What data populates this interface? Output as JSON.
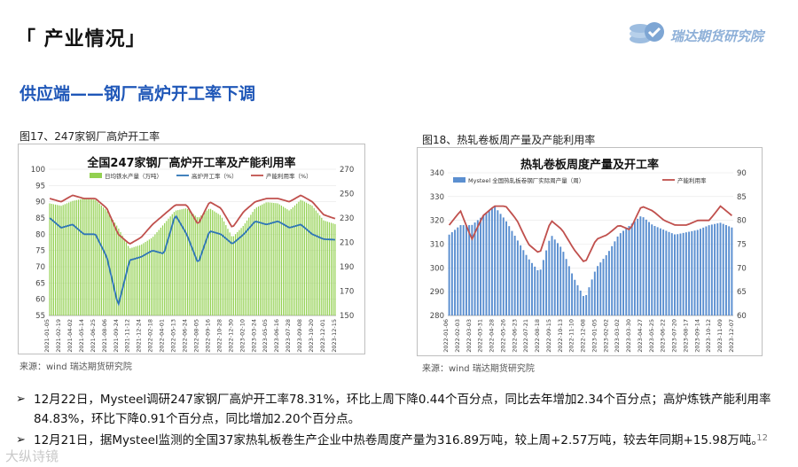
{
  "header": {
    "title": "「 产业情况」"
  },
  "logo": {
    "text": "瑞达期货研究院"
  },
  "section": {
    "subtitle": "供应端——钢厂高炉开工率下调"
  },
  "figures": {
    "left": {
      "caption": "图17、247家钢厂高炉开工率",
      "source": "来源：wind   瑞达期货研究院"
    },
    "right": {
      "caption": "图18、热轧卷板周产量及产能利用率",
      "source": "来源：wind   瑞达期货研究院"
    }
  },
  "chart_data": [
    {
      "type": "bar",
      "title": "全国247家钢厂高炉开工率及产能利用率",
      "legend": [
        "日均铁水产量（万吨）",
        "高炉开工率（%）",
        "产能利用率（%）"
      ],
      "legend_placement": "top",
      "left_axis": {
        "ticks": [
          55,
          60,
          65,
          70,
          75,
          80,
          85,
          90,
          95,
          100
        ],
        "ylim": [
          55,
          100
        ]
      },
      "right_axis": {
        "ticks": [
          150,
          170,
          190,
          210,
          230,
          250,
          270
        ],
        "ylim": [
          150,
          270
        ]
      },
      "categories": [
        "2021-01-05",
        "2021-02-19",
        "2021-04-02",
        "2021-05-14",
        "2021-06-25",
        "2021-08-06",
        "2021-09-24",
        "2021-11-12",
        "2021-12-24",
        "2022-02-18",
        "2022-04-01",
        "2022-05-13",
        "2022-06-24",
        "2022-08-05",
        "2022-09-16",
        "2022-10-28",
        "2022-12-30",
        "2023-02-10",
        "2023-03-24",
        "2023-05-05",
        "2023-06-16",
        "2023-07-28",
        "2023-09-08",
        "2023-10-20",
        "2023-12-01",
        "2023-12-15"
      ],
      "series": [
        {
          "name": "日均铁水产量（万吨）",
          "axis": "right",
          "color": "#92d050",
          "values": [
            242,
            240,
            244,
            246,
            245,
            236,
            222,
            205,
            208,
            214,
            225,
            236,
            238,
            230,
            238,
            232,
            214,
            224,
            238,
            243,
            242,
            236,
            245,
            240,
            228,
            225
          ]
        },
        {
          "name": "高炉开工率（%）",
          "axis": "left",
          "color": "#2e75b6",
          "values": [
            85,
            82,
            83,
            80,
            80,
            73,
            58,
            72,
            73,
            75,
            74,
            86,
            80,
            71,
            81,
            80,
            77,
            80,
            84,
            83,
            84,
            82,
            83,
            80,
            78.5,
            78.3
          ]
        },
        {
          "name": "产能利用率（%）",
          "axis": "left",
          "color": "#c0504d",
          "values": [
            91,
            90,
            92,
            91,
            91,
            88,
            80,
            77,
            79,
            83,
            86,
            89,
            89,
            83,
            90,
            88,
            82,
            87,
            90,
            91,
            91,
            90,
            92,
            90,
            86,
            84.8
          ]
        }
      ]
    },
    {
      "type": "bar",
      "title": "热轧卷板周度产量及开工率",
      "legend": [
        "Mysteel 全国热轧板卷钢厂实际周产量（周）",
        "产能利用率"
      ],
      "legend_placement": "top",
      "left_axis": {
        "ticks": [
          280,
          290,
          300,
          310,
          320,
          330,
          340
        ],
        "ylim": [
          280,
          340
        ]
      },
      "right_axis": {
        "ticks": [
          60,
          65,
          70,
          75,
          80,
          85,
          90
        ],
        "ylim": [
          60,
          90
        ]
      },
      "categories": [
        "2022-01-06",
        "2022-02-03",
        "2022-03-03",
        "2022-03-31",
        "2022-04-28",
        "2022-05-26",
        "2022-06-23",
        "2022-07-21",
        "2022-08-18",
        "2022-09-15",
        "2022-10-13",
        "2022-11-10",
        "2022-12-08",
        "2023-01-05",
        "2023-02-02",
        "2023-03-02",
        "2023-03-30",
        "2023-04-27",
        "2023-05-25",
        "2023-06-22",
        "2023-07-20",
        "2023-08-17",
        "2023-09-14",
        "2023-10-12",
        "2023-11-09",
        "2023-12-07"
      ],
      "series": [
        {
          "name": "Mysteel 全国热轧板卷钢厂实际周产量（周）",
          "axis": "left",
          "color": "#5b8fd0",
          "values": [
            314,
            318,
            318,
            322,
            326,
            320,
            312,
            304,
            298,
            314,
            308,
            296,
            287,
            300,
            306,
            314,
            318,
            322,
            318,
            316,
            314,
            315,
            316,
            318,
            319,
            317
          ]
        },
        {
          "name": "产能利用率",
          "axis": "right",
          "color": "#c0504d",
          "values": [
            79,
            82,
            76,
            81,
            83,
            83,
            80,
            75,
            73,
            80,
            78,
            74,
            71,
            76,
            77,
            79,
            78,
            83,
            82,
            80,
            79,
            79,
            80,
            80,
            83,
            81
          ]
        }
      ]
    }
  ],
  "bullets": [
    {
      "arrow": "➢",
      "text": "12月22日，Mysteel调研247家钢厂高炉开工率78.31%，环比上周下降0.44个百分点，同比去年增加2.34个百分点；高炉炼铁产能利用率84.83%，环比下降0.91个百分点，同比增加2.20个百分点。"
    },
    {
      "arrow": "➢",
      "text": "12月21日，据Mysteel监测的全国37家热轧板卷生产企业中热卷周度产量为316.89万吨，较上周+2.57万吨，较去年同期+15.98万吨。"
    }
  ],
  "page_number": "12",
  "watermark": "大纵诗镜"
}
